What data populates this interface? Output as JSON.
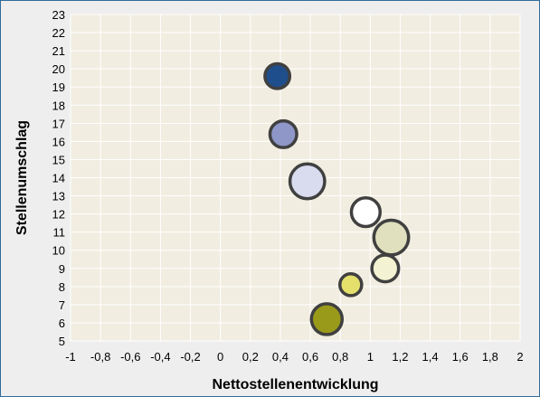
{
  "chart_data": {
    "type": "scatter",
    "xlabel": "Nettostellenentwicklung",
    "ylabel": "Stellenumschlag",
    "xlim": [
      -1,
      2
    ],
    "ylim": [
      5,
      23
    ],
    "x_ticks": [
      "-1",
      "-0,8",
      "-0,6",
      "-0,4",
      "-0,2",
      "0",
      "0,2",
      "0,4",
      "0,6",
      "0,8",
      "1",
      "1,2",
      "1,4",
      "1,6",
      "1,8",
      "2"
    ],
    "y_ticks": [
      "5",
      "6",
      "7",
      "8",
      "9",
      "10",
      "11",
      "12",
      "13",
      "14",
      "15",
      "16",
      "17",
      "18",
      "19",
      "20",
      "21",
      "22",
      "23"
    ],
    "grid": true,
    "legend": "none",
    "points": [
      {
        "x": 0.38,
        "y": 19.6,
        "size": 0.7,
        "color": "#1f4e8c"
      },
      {
        "x": 0.42,
        "y": 16.4,
        "size": 0.8,
        "color": "#8e97c8"
      },
      {
        "x": 0.58,
        "y": 13.8,
        "size": 1.2,
        "color": "#d9dcef"
      },
      {
        "x": 0.97,
        "y": 12.1,
        "size": 0.9,
        "color": "#ffffff"
      },
      {
        "x": 1.14,
        "y": 10.7,
        "size": 1.2,
        "color": "#e0dfbe"
      },
      {
        "x": 1.1,
        "y": 9.0,
        "size": 0.8,
        "color": "#f3f2d2"
      },
      {
        "x": 0.87,
        "y": 8.1,
        "size": 0.55,
        "color": "#e4e06b"
      },
      {
        "x": 0.71,
        "y": 6.2,
        "size": 1.0,
        "color": "#9a9a1a"
      }
    ],
    "colors": {
      "plot_bg": "#f1ede0",
      "grid": "#ffffff",
      "marker_outline": "#404040",
      "frame": "#2f6b9a"
    }
  }
}
